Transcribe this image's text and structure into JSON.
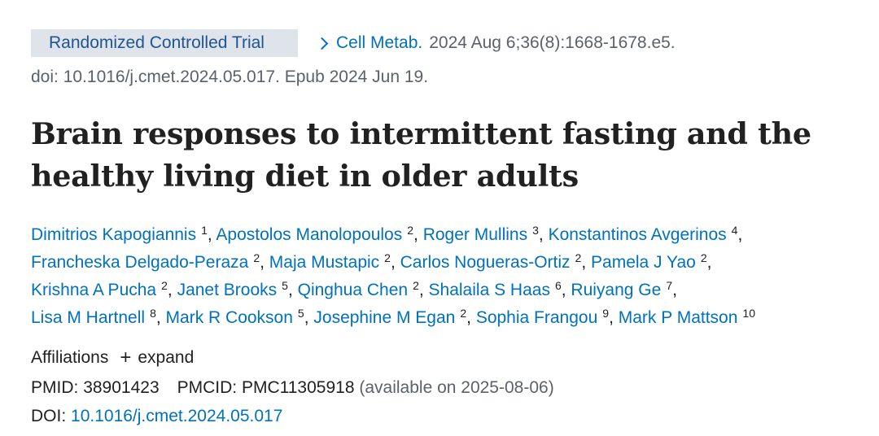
{
  "header": {
    "publication_type": "Randomized Controlled Trial",
    "journal": "Cell Metab.",
    "citation": "2024 Aug 6;36(8):1668-1678.e5.",
    "doi_line": "doi: 10.1016/j.cmet.2024.05.017. Epub 2024 Jun 19."
  },
  "title": "Brain responses to intermittent fasting and the healthy living diet in older adults",
  "authors": [
    [
      {
        "name": "Dimitrios Kapogiannis",
        "aff": "1"
      },
      {
        "name": "Apostolos Manolopoulos",
        "aff": "2"
      },
      {
        "name": "Roger Mullins",
        "aff": "3"
      },
      {
        "name": "Konstantinos Avgerinos",
        "aff": "4"
      }
    ],
    [
      {
        "name": "Francheska Delgado-Peraza",
        "aff": "2"
      },
      {
        "name": "Maja Mustapic",
        "aff": "2"
      },
      {
        "name": "Carlos Nogueras-Ortiz",
        "aff": "2"
      },
      {
        "name": "Pamela J Yao",
        "aff": "2"
      }
    ],
    [
      {
        "name": "Krishna A Pucha",
        "aff": "2"
      },
      {
        "name": "Janet Brooks",
        "aff": "5"
      },
      {
        "name": "Qinghua Chen",
        "aff": "2"
      },
      {
        "name": "Shalaila S Haas",
        "aff": "6"
      },
      {
        "name": "Ruiyang Ge",
        "aff": "7"
      }
    ],
    [
      {
        "name": "Lisa M Hartnell",
        "aff": "8"
      },
      {
        "name": "Mark R Cookson",
        "aff": "5"
      },
      {
        "name": "Josephine M Egan",
        "aff": "2"
      },
      {
        "name": "Sophia Frangou",
        "aff": "9"
      },
      {
        "name": "Mark P Mattson",
        "aff": "10"
      }
    ]
  ],
  "affiliations": {
    "label": "Affiliations",
    "toggle_icon": "plus-icon",
    "toggle_label": "expand"
  },
  "ids": {
    "pmid_label": "PMID:",
    "pmid": "38901423",
    "pmcid_label": "PMCID:",
    "pmcid": "PMC11305918",
    "pmcid_note": "(available on 2025-08-06)",
    "doi_label": "DOI:",
    "doi": "10.1016/j.cmet.2024.05.017"
  },
  "colors": {
    "link": "#0071bc",
    "badge_bg": "#dfe3ea",
    "badge_text": "#205493",
    "muted": "#5b616b",
    "text": "#212121"
  }
}
